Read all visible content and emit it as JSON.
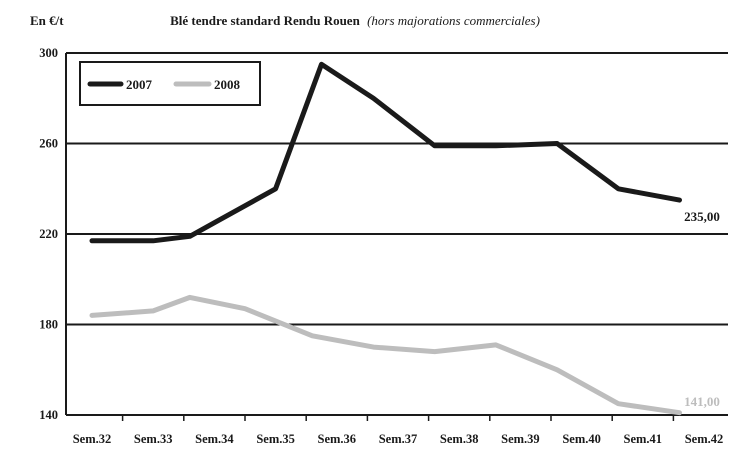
{
  "chart_data": {
    "type": "line",
    "title": "Blé tendre standard Rendu Rouen",
    "subtitle": "(hors majorations commerciales)",
    "ylabel": "En €/t",
    "xlabel": "",
    "categories": [
      "Sem.32",
      "Sem.33",
      "Sem.34",
      "Sem.35",
      "Sem.36",
      "Sem.37",
      "Sem.38",
      "Sem.39",
      "Sem.40",
      "Sem.41",
      "Sem.42"
    ],
    "ylim": [
      140,
      300
    ],
    "yticks": [
      140,
      180,
      220,
      260,
      300
    ],
    "grid": true,
    "legend_position": "top-left",
    "series": [
      {
        "name": "2007",
        "color": "#1a1a1a",
        "x": [
          32,
          33,
          33.6,
          34,
          35,
          35.75,
          36.6,
          37.6,
          38.6,
          39.6,
          40.6,
          41.6
        ],
        "values": [
          217,
          217,
          219,
          225,
          240,
          295,
          280,
          259,
          259,
          260,
          240,
          235
        ]
      },
      {
        "name": "2008",
        "color": "#bdbdbd",
        "x": [
          32,
          33,
          33.6,
          34.5,
          35.6,
          36.6,
          37.6,
          38.6,
          39.6,
          40.6,
          41.6
        ],
        "values": [
          184,
          186,
          192,
          187,
          175,
          170,
          168,
          171,
          160,
          145,
          141
        ]
      }
    ],
    "data_labels": [
      {
        "series": "2007",
        "text": "235,00",
        "color": "#1a1a1a"
      },
      {
        "series": "2008",
        "text": "141,00",
        "color": "#bdbdbd"
      }
    ]
  }
}
